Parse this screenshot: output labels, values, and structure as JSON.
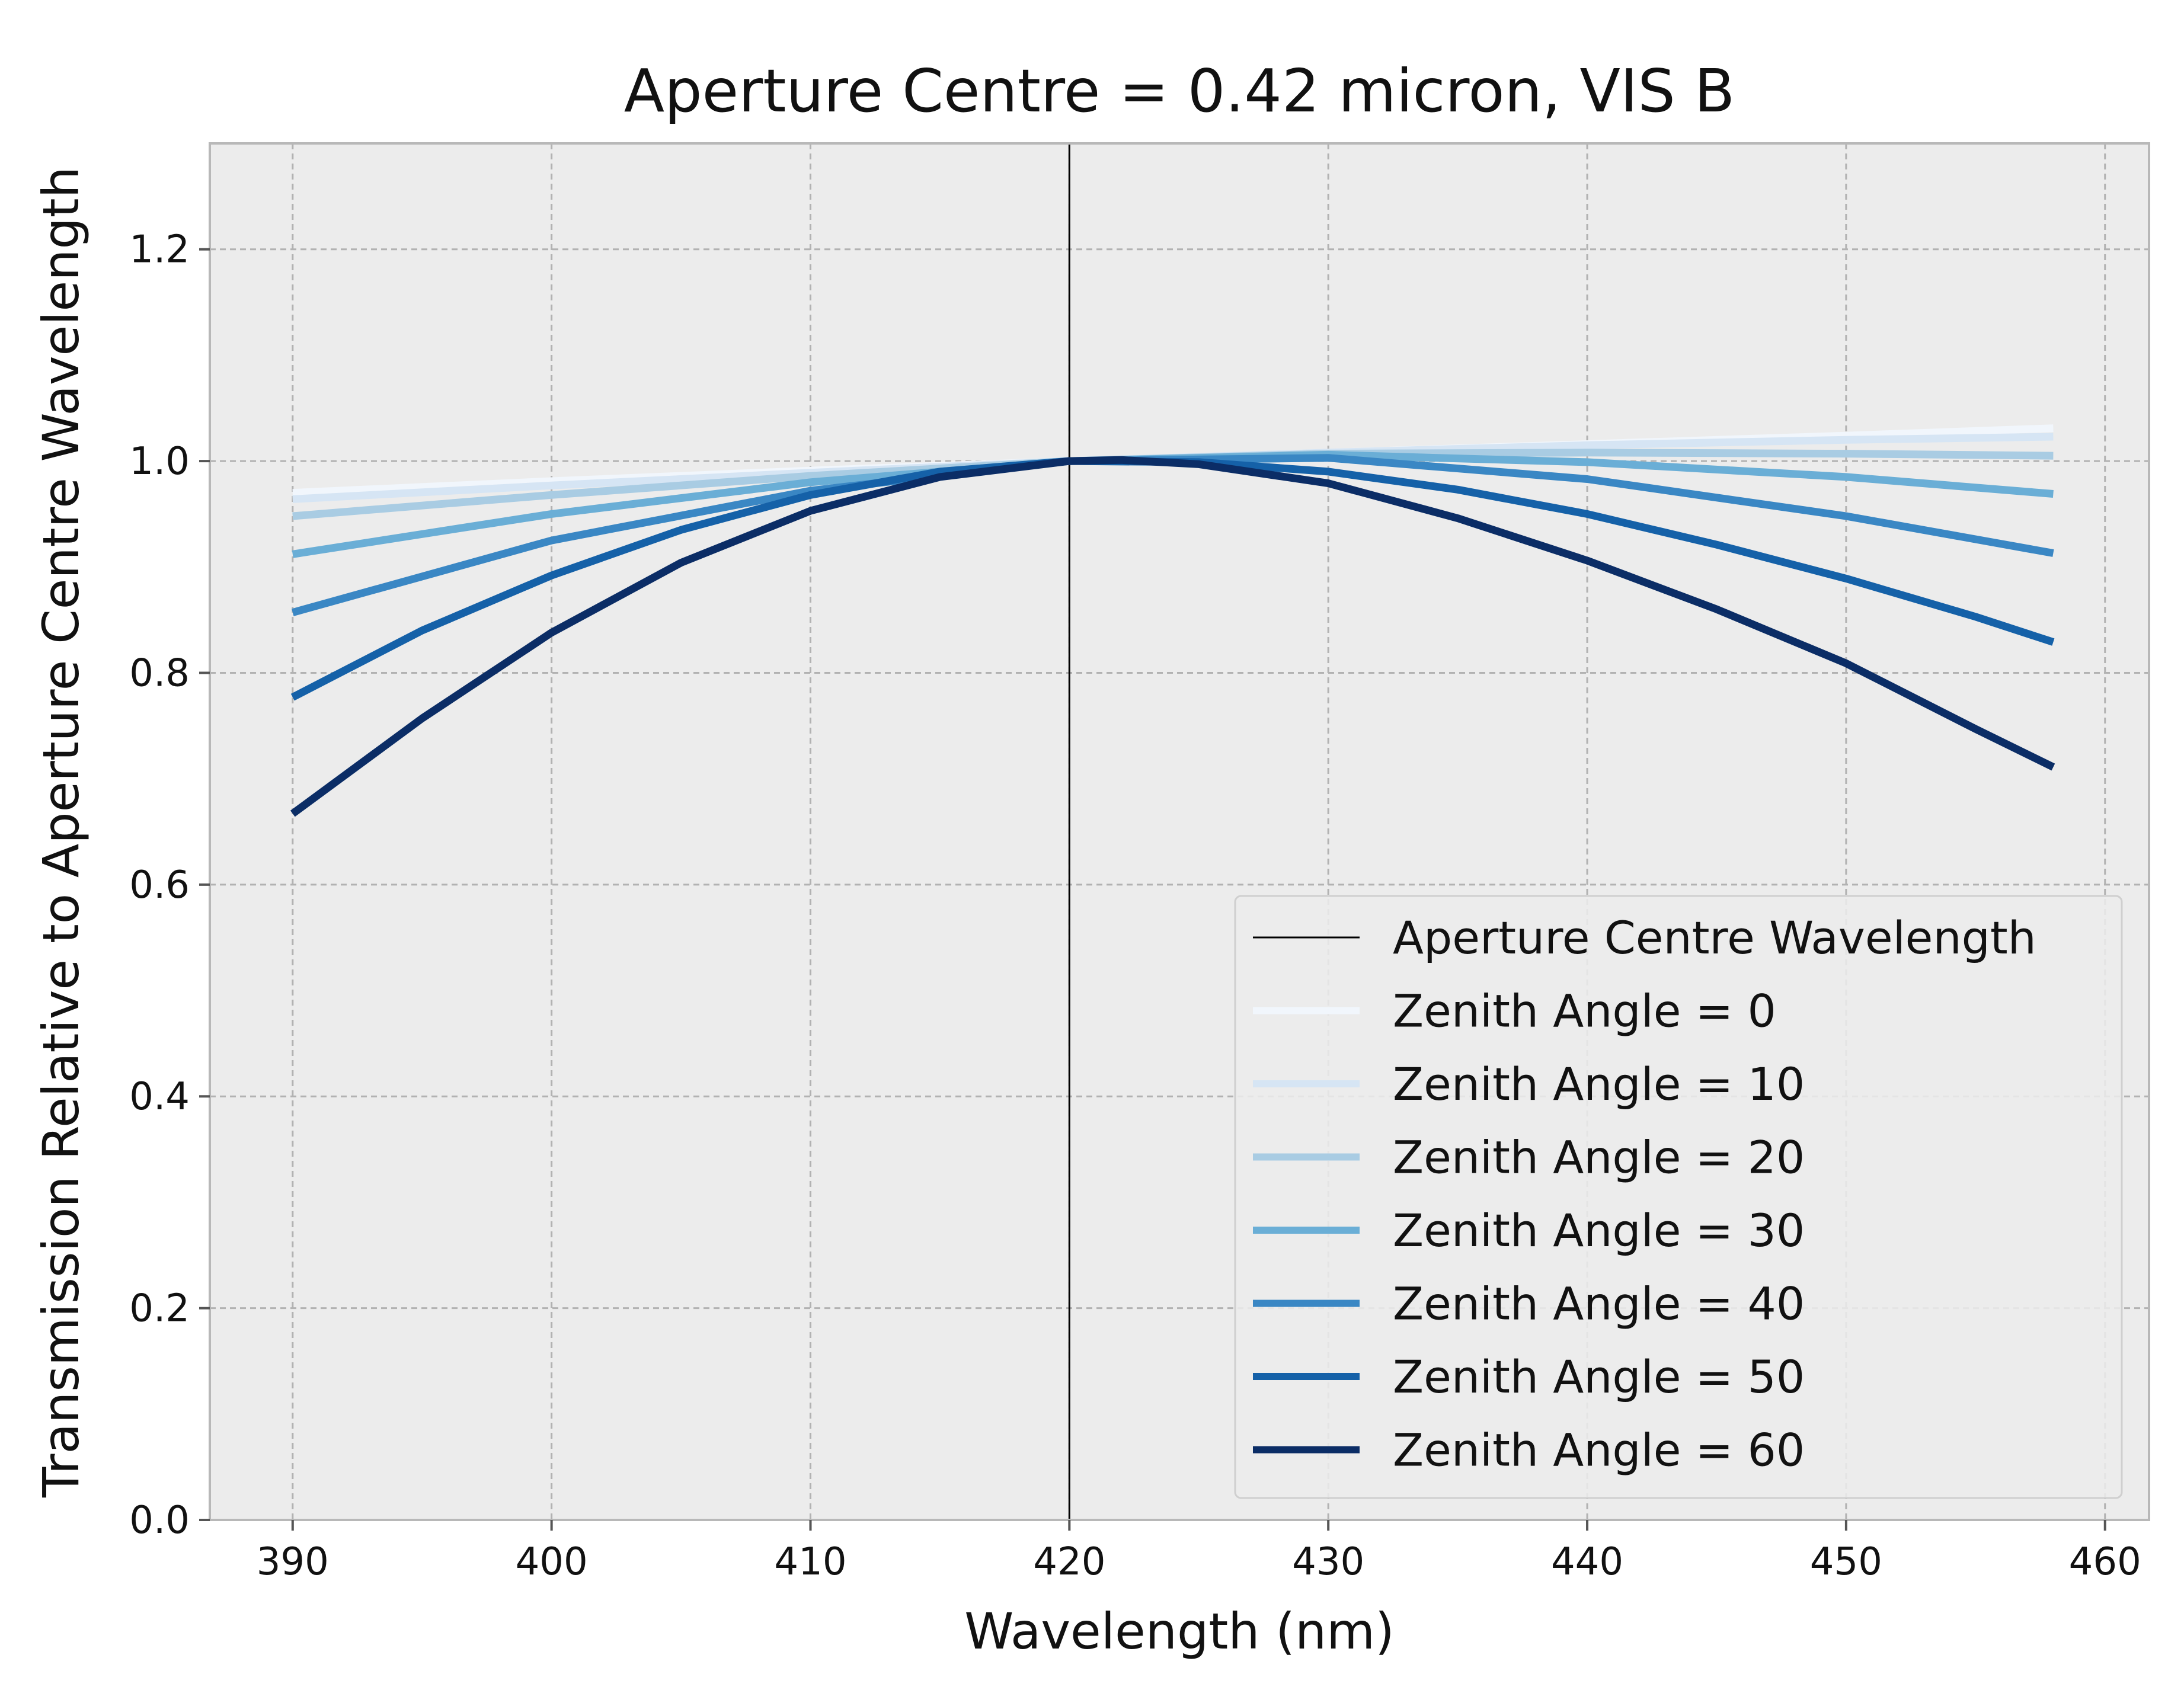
{
  "chart_data": {
    "type": "line",
    "title": "Aperture Centre = 0.42 micron, VIS B",
    "xlabel": "Wavelength (nm)",
    "ylabel": "Transmission Relative to Aperture Centre Wavelength",
    "xlim": [
      386.8,
      461.7
    ],
    "ylim": [
      0.0,
      1.3
    ],
    "xticks": [
      "390",
      "400",
      "410",
      "420",
      "430",
      "440",
      "450",
      "460"
    ],
    "yticks": [
      "0.0",
      "0.2",
      "0.4",
      "0.6",
      "0.8",
      "1.0",
      "1.2"
    ],
    "grid": true,
    "legend_position": "lower right",
    "background_color": "#ececec",
    "vertical_line": {
      "name": "Aperture Centre Wavelength",
      "x": 420,
      "color": "#000000"
    },
    "series": [
      {
        "name": "Zenith Angle =  0",
        "color": "#f1f6fc",
        "x": [
          390,
          400,
          410,
          420,
          430,
          440,
          450,
          458
        ],
        "values": [
          0.97,
          0.981,
          0.991,
          1.0,
          1.008,
          1.016,
          1.024,
          1.031
        ]
      },
      {
        "name": "Zenith Angle = 10",
        "color": "#d6e5f4",
        "x": [
          390,
          400,
          410,
          420,
          430,
          440,
          450,
          458
        ],
        "values": [
          0.964,
          0.977,
          0.989,
          1.0,
          1.008,
          1.015,
          1.02,
          1.023
        ]
      },
      {
        "name": "Zenith Angle = 20",
        "color": "#a9cce3",
        "x": [
          390,
          400,
          410,
          420,
          430,
          440,
          450,
          458
        ],
        "values": [
          0.948,
          0.968,
          0.986,
          1.0,
          1.007,
          1.008,
          1.007,
          1.005
        ]
      },
      {
        "name": "Zenith Angle = 30",
        "color": "#6aaed6",
        "x": [
          390,
          400,
          410,
          420,
          430,
          440,
          450,
          458
        ],
        "values": [
          0.912,
          0.95,
          0.98,
          1.0,
          1.006,
          0.999,
          0.985,
          0.969
        ]
      },
      {
        "name": "Zenith Angle = 40",
        "color": "#3a87c4",
        "x": [
          390,
          400,
          410,
          420,
          430,
          440,
          450,
          458
        ],
        "values": [
          0.857,
          0.925,
          0.972,
          1.0,
          1.003,
          0.983,
          0.948,
          0.913
        ]
      },
      {
        "name": "Zenith Angle = 50",
        "color": "#1561a8",
        "x": [
          390,
          395,
          400,
          405,
          410,
          415,
          420,
          425,
          430,
          435,
          440,
          445,
          450,
          455,
          458
        ],
        "values": [
          0.777,
          0.84,
          0.892,
          0.935,
          0.968,
          0.99,
          1.0,
          0.999,
          0.99,
          0.973,
          0.95,
          0.921,
          0.889,
          0.853,
          0.829
        ]
      },
      {
        "name": "Zenith Angle = 60",
        "color": "#0b2d66",
        "x": [
          390,
          395,
          400,
          405,
          410,
          415,
          420,
          422,
          425,
          430,
          435,
          440,
          445,
          450,
          455,
          458
        ],
        "values": [
          0.667,
          0.757,
          0.838,
          0.904,
          0.953,
          0.985,
          1.0,
          1.001,
          0.997,
          0.979,
          0.946,
          0.906,
          0.86,
          0.809,
          0.747,
          0.711
        ]
      }
    ]
  }
}
